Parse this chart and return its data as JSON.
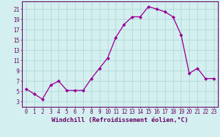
{
  "x": [
    0,
    1,
    2,
    3,
    4,
    5,
    6,
    7,
    8,
    9,
    10,
    11,
    12,
    13,
    14,
    15,
    16,
    17,
    18,
    19,
    20,
    21,
    22,
    23
  ],
  "y": [
    5.5,
    4.5,
    3.5,
    6.2,
    7.0,
    5.2,
    5.2,
    5.2,
    7.5,
    9.5,
    11.5,
    15.5,
    18.0,
    19.5,
    19.5,
    21.5,
    21.0,
    20.5,
    19.5,
    16.0,
    8.5,
    9.5,
    7.5,
    7.5
  ],
  "line_color": "#990099",
  "marker": "D",
  "markersize": 2.2,
  "linewidth": 1.0,
  "xlabel": "Windchill (Refroidissement éolien,°C)",
  "xlabel_fontsize": 6.5,
  "ytick_values": [
    3,
    5,
    7,
    9,
    11,
    13,
    15,
    17,
    19,
    21
  ],
  "xlim": [
    -0.5,
    23.5
  ],
  "ylim": [
    2.0,
    22.5
  ],
  "background_color": "#d4efef",
  "grid_color": "#b0d8d8",
  "tick_fontsize": 5.5,
  "tick_color": "#660066"
}
